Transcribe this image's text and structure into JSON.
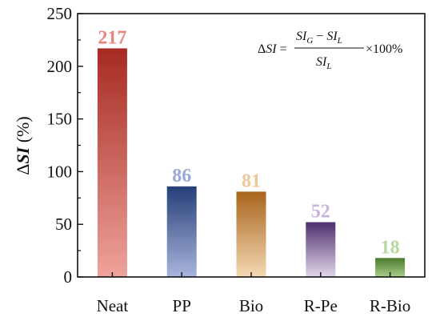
{
  "chart_data": {
    "type": "bar",
    "categories": [
      "Neat",
      "PP",
      "Bio",
      "R-Pe",
      "R-Bio"
    ],
    "values": [
      217,
      86,
      81,
      52,
      18
    ],
    "data_labels": [
      "217",
      "86",
      "81",
      "52",
      "18"
    ],
    "ylabel": "ΔSI (%)",
    "ylabel_parts": {
      "delta": "Δ",
      "var": "SI",
      "unit": " (%)"
    },
    "ylim": [
      0,
      250
    ],
    "yticks": [
      0,
      50,
      100,
      150,
      200,
      250
    ],
    "ytick_labels": [
      "0",
      "50",
      "100",
      "150",
      "200",
      "250"
    ],
    "grid": false,
    "annotation": {
      "lhs": "ΔSI",
      "numerator": "SI_G − SI_L",
      "denominator": "SI_L",
      "suffix": "×100%",
      "placement": "top-right"
    },
    "bar_colors": [
      {
        "top": "#a62a22",
        "bottom": "#eea39b",
        "label": "#e8867c"
      },
      {
        "top": "#253f77",
        "bottom": "#a9b5dd",
        "label": "#9aa9d4"
      },
      {
        "top": "#a8641c",
        "bottom": "#f4d9b4",
        "label": "#f0c597"
      },
      {
        "top": "#4e2f6e",
        "bottom": "#e1d7ea",
        "label": "#c7b6d8"
      },
      {
        "top": "#4a7a2c",
        "bottom": "#a9cf8b",
        "label": "#b7d99b"
      }
    ]
  }
}
